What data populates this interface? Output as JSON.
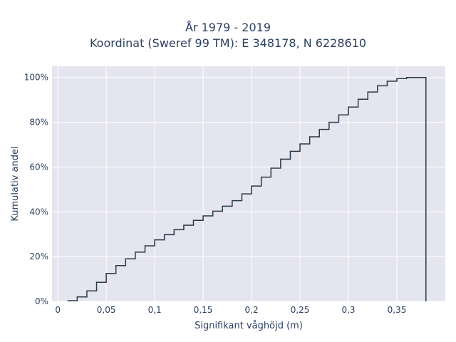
{
  "chart_data": {
    "type": "line",
    "title": "År 1979 - 2019",
    "subtitle": "Koordinat (Sweref 99 TM): E 348178, N 6228610",
    "xlabel": "Signifikant våghöjd (m)",
    "ylabel": "Kumulativ andel",
    "xlim": [
      -0.006,
      0.4
    ],
    "ylim": [
      0,
      1.05
    ],
    "x_ticks": [
      0,
      0.05,
      0.1,
      0.15,
      0.2,
      0.25,
      0.3,
      0.35
    ],
    "x_tick_labels": [
      "0",
      "0,05",
      "0,1",
      "0,15",
      "0,2",
      "0,25",
      "0,3",
      "0,35"
    ],
    "y_ticks": [
      0,
      0.2,
      0.4,
      0.6,
      0.8,
      1.0
    ],
    "y_tick_labels": [
      "0%",
      "20%",
      "40%",
      "60%",
      "80%",
      "100%"
    ],
    "grid": true,
    "plot_bg": "#e5e5f0",
    "line_color": "#2a3848",
    "series": [
      {
        "x": [
          0.01,
          0.02,
          0.03,
          0.04,
          0.05,
          0.06,
          0.07,
          0.08,
          0.09,
          0.1,
          0.11,
          0.12,
          0.13,
          0.14,
          0.15,
          0.16,
          0.17,
          0.18,
          0.19,
          0.2,
          0.21,
          0.22,
          0.23,
          0.24,
          0.25,
          0.26,
          0.27,
          0.28,
          0.29,
          0.3,
          0.31,
          0.32,
          0.33,
          0.34,
          0.35,
          0.36,
          0.37,
          0.38
        ],
        "y": [
          0.003,
          0.02,
          0.047,
          0.085,
          0.125,
          0.16,
          0.19,
          0.22,
          0.248,
          0.275,
          0.298,
          0.32,
          0.34,
          0.362,
          0.382,
          0.403,
          0.425,
          0.45,
          0.48,
          0.515,
          0.555,
          0.595,
          0.635,
          0.67,
          0.703,
          0.735,
          0.768,
          0.8,
          0.833,
          0.868,
          0.903,
          0.935,
          0.963,
          0.983,
          0.995,
          1.0,
          1.0,
          0.0
        ]
      }
    ]
  }
}
